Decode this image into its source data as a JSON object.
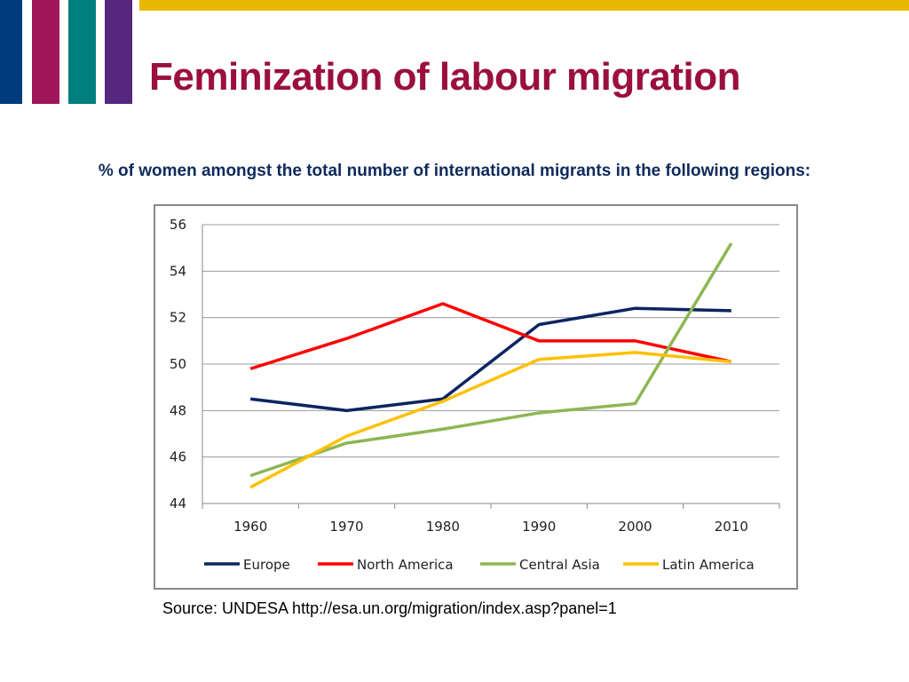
{
  "decor": {
    "bar_colors": [
      "#003c7d",
      "#a0165a",
      "#007f7c",
      "#55287e"
    ],
    "top_stripe_color": "#e6b800"
  },
  "title": "Feminization of labour migration",
  "subtitle": "% of women amongst the total number of international migrants in the following regions:",
  "source": "Source: UNDESA http://esa.un.org/migration/index.asp?panel=1",
  "chart_data": {
    "type": "line",
    "categories": [
      "1960",
      "1970",
      "1980",
      "1990",
      "2000",
      "2010"
    ],
    "ylim": [
      44,
      56
    ],
    "yticks": [
      "44",
      "46",
      "48",
      "50",
      "52",
      "54",
      "56"
    ],
    "grid": true,
    "legend_position": "bottom",
    "series": [
      {
        "name": "Europe",
        "color": "#0c2461",
        "values": [
          48.5,
          48.0,
          48.5,
          51.7,
          52.4,
          52.3
        ]
      },
      {
        "name": "North America",
        "color": "#ff0000",
        "values": [
          49.8,
          51.1,
          52.6,
          51.0,
          51.0,
          50.1
        ]
      },
      {
        "name": "Central Asia",
        "color": "#8db654",
        "values": [
          45.2,
          46.6,
          47.2,
          47.9,
          48.3,
          55.2
        ]
      },
      {
        "name": "Latin America",
        "color": "#ffc000",
        "values": [
          44.7,
          46.9,
          48.4,
          50.2,
          50.5,
          50.1
        ]
      }
    ]
  }
}
